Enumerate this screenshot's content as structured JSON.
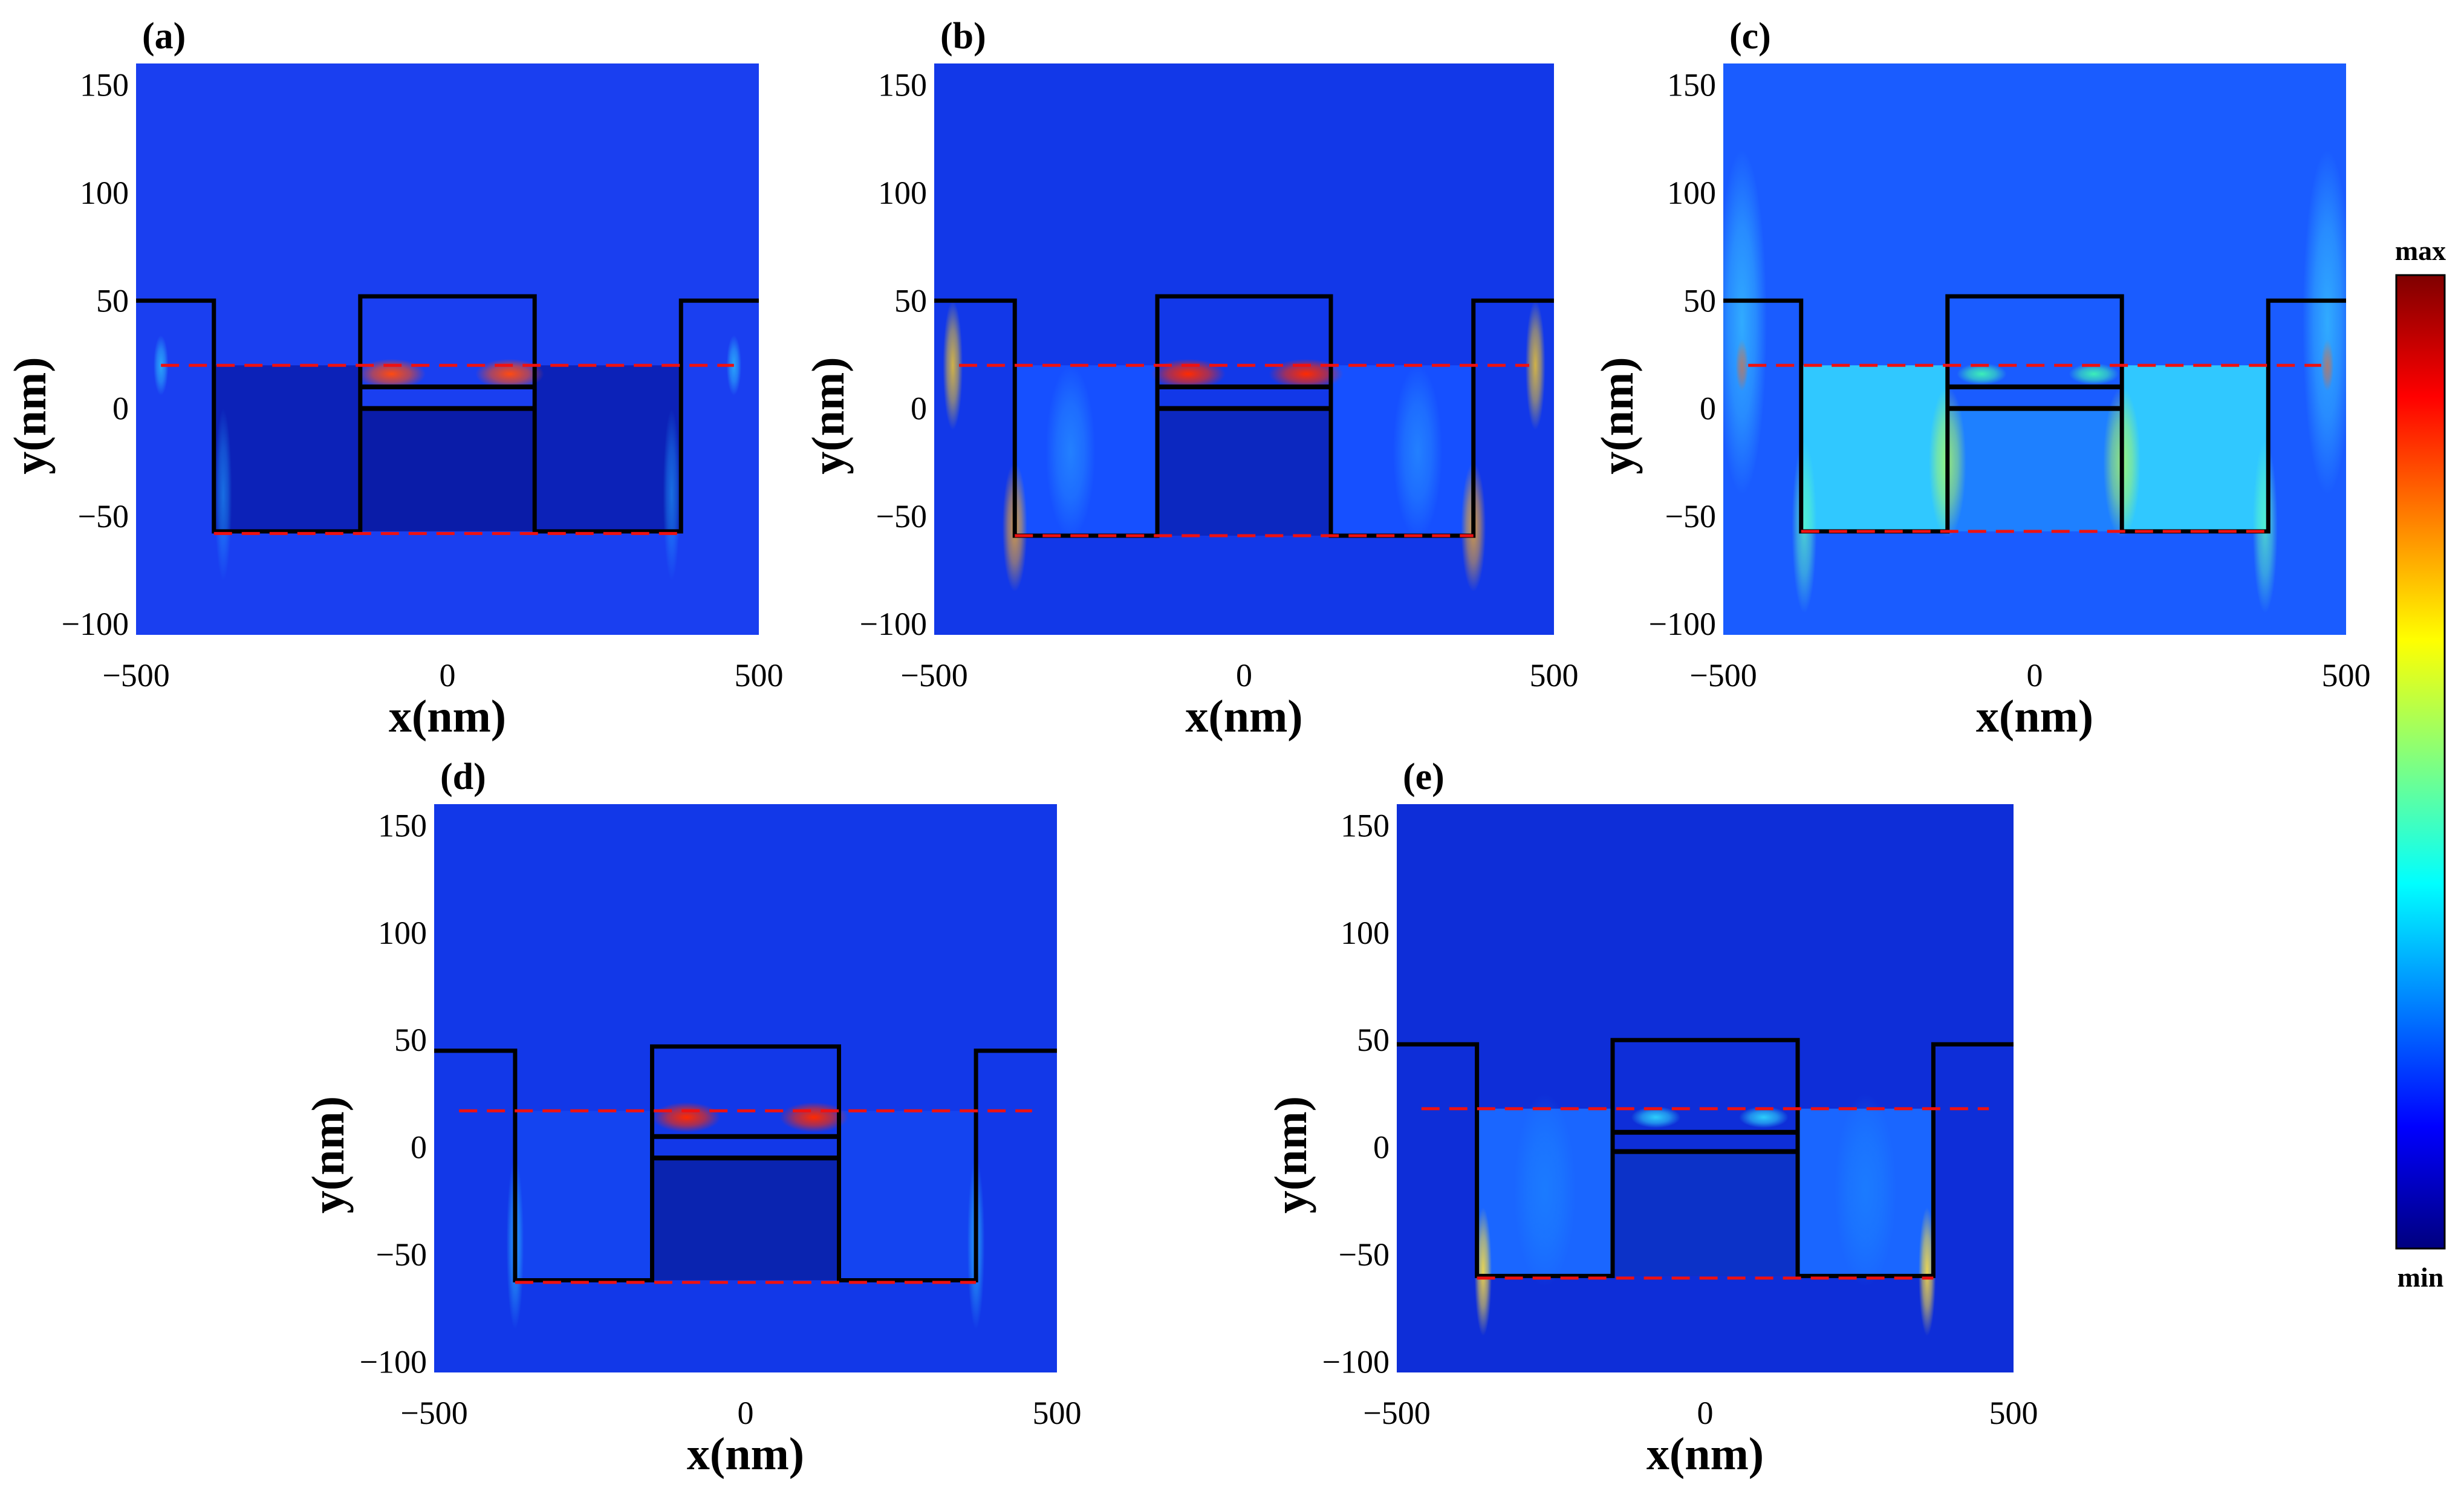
{
  "figure": {
    "colorbar": {
      "max_label": "max",
      "min_label": "min",
      "colors": [
        "#00007f",
        "#0000ff",
        "#0080ff",
        "#00ffff",
        "#80ff80",
        "#ffff00",
        "#ff8000",
        "#ff0000",
        "#7f0000"
      ]
    }
  },
  "chart_data": [
    {
      "type": "heatmap",
      "panel": "(a)",
      "xlabel": "x(nm)",
      "ylabel": "y(nm)",
      "xlim": [
        -500,
        500
      ],
      "ylim": [
        -105,
        160
      ],
      "xticks": [
        -500,
        0,
        500
      ],
      "yticks": [
        -100,
        -50,
        0,
        50,
        100,
        150
      ],
      "structure": {
        "outer_top": 50,
        "mesa_top": 52,
        "trench_bottom": -57,
        "pillar_half_width": 140,
        "trench_outer_x": 375
      },
      "layers_y": [
        10,
        0
      ],
      "ref_lines_y": [
        20,
        -58
      ],
      "background": "#1a3ff0",
      "trench_fill": "#0c22b8",
      "cavity_fill": "#0a1ca8",
      "hotspots": [
        {
          "x": -90,
          "y": 16,
          "rx": 55,
          "ry": 7,
          "color": "#ff4a10",
          "strength": 1.0
        },
        {
          "x": 100,
          "y": 16,
          "rx": 55,
          "ry": 7,
          "color": "#ff4a10",
          "strength": 1.0
        },
        {
          "x": -460,
          "y": 20,
          "rx": 12,
          "ry": 14,
          "color": "#30d0ff",
          "strength": 0.7
        },
        {
          "x": 460,
          "y": 20,
          "rx": 12,
          "ry": 14,
          "color": "#30d0ff",
          "strength": 0.7
        },
        {
          "x": -360,
          "y": -40,
          "rx": 14,
          "ry": 40,
          "color": "#20a0ff",
          "strength": 0.6
        },
        {
          "x": 360,
          "y": -40,
          "rx": 14,
          "ry": 40,
          "color": "#20a0ff",
          "strength": 0.6
        }
      ]
    },
    {
      "type": "heatmap",
      "panel": "(b)",
      "xlabel": "x(nm)",
      "ylabel": "y(nm)",
      "xlim": [
        -500,
        500
      ],
      "ylim": [
        -105,
        160
      ],
      "xticks": [
        -500,
        0,
        500
      ],
      "yticks": [
        -100,
        -50,
        0,
        50,
        100,
        150
      ],
      "structure": {
        "outer_top": 50,
        "mesa_top": 52,
        "trench_bottom": -59,
        "pillar_half_width": 140,
        "trench_outer_x": 370
      },
      "layers_y": [
        10,
        0
      ],
      "ref_lines_y": [
        20,
        -59
      ],
      "background": "#1238e8",
      "trench_fill": "#1650ff",
      "cavity_fill": "#0c28c0",
      "hotspots": [
        {
          "x": -90,
          "y": 16,
          "rx": 60,
          "ry": 7,
          "color": "#ff2a00",
          "strength": 1.0
        },
        {
          "x": 100,
          "y": 16,
          "rx": 60,
          "ry": 7,
          "color": "#ff2a00",
          "strength": 1.0
        },
        {
          "x": -470,
          "y": 20,
          "rx": 16,
          "ry": 30,
          "color": "#ffd020",
          "strength": 0.8
        },
        {
          "x": 470,
          "y": 20,
          "rx": 16,
          "ry": 30,
          "color": "#ffd020",
          "strength": 0.8
        },
        {
          "x": -370,
          "y": -55,
          "rx": 20,
          "ry": 30,
          "color": "#ffb020",
          "strength": 0.8
        },
        {
          "x": 370,
          "y": -55,
          "rx": 20,
          "ry": 30,
          "color": "#ffb020",
          "strength": 0.8
        },
        {
          "x": -280,
          "y": -20,
          "rx": 40,
          "ry": 40,
          "color": "#2fb0ff",
          "strength": 0.5
        },
        {
          "x": 280,
          "y": -20,
          "rx": 40,
          "ry": 40,
          "color": "#2fb0ff",
          "strength": 0.5
        }
      ]
    },
    {
      "type": "heatmap",
      "panel": "(c)",
      "xlabel": "x(nm)",
      "ylabel": "y(nm)",
      "xlim": [
        -500,
        500
      ],
      "ylim": [
        -105,
        160
      ],
      "xticks": [
        -500,
        0,
        500
      ],
      "yticks": [
        -100,
        -50,
        0,
        50,
        100,
        150
      ],
      "structure": {
        "outer_top": 50,
        "mesa_top": 52,
        "trench_bottom": -57,
        "pillar_half_width": 140,
        "trench_outer_x": 375
      },
      "layers_y": [
        10,
        0
      ],
      "ref_lines_y": [
        20,
        -57
      ],
      "background": "#1a5cff",
      "trench_fill": "#30c8ff",
      "cavity_fill": "#1e80ff",
      "hotspots": [
        {
          "x": -85,
          "y": 16,
          "rx": 40,
          "ry": 5,
          "color": "#40ffb0",
          "strength": 0.9
        },
        {
          "x": 95,
          "y": 16,
          "rx": 40,
          "ry": 5,
          "color": "#40ffb0",
          "strength": 0.9
        },
        {
          "x": -470,
          "y": 20,
          "rx": 10,
          "ry": 12,
          "color": "#ff2000",
          "strength": 1.0
        },
        {
          "x": 470,
          "y": 20,
          "rx": 10,
          "ry": 12,
          "color": "#ff2000",
          "strength": 1.0
        },
        {
          "x": -470,
          "y": 40,
          "rx": 40,
          "ry": 80,
          "color": "#40e0ff",
          "strength": 0.6
        },
        {
          "x": 470,
          "y": 40,
          "rx": 40,
          "ry": 80,
          "color": "#40e0ff",
          "strength": 0.6
        },
        {
          "x": -140,
          "y": -25,
          "rx": 30,
          "ry": 35,
          "color": "#b0ff60",
          "strength": 0.8
        },
        {
          "x": 140,
          "y": -25,
          "rx": 30,
          "ry": 35,
          "color": "#b0ff60",
          "strength": 0.8
        },
        {
          "x": -370,
          "y": -55,
          "rx": 20,
          "ry": 40,
          "color": "#60ffc0",
          "strength": 0.7
        },
        {
          "x": 370,
          "y": -55,
          "rx": 20,
          "ry": 40,
          "color": "#60ffc0",
          "strength": 0.7
        }
      ]
    },
    {
      "type": "heatmap",
      "panel": "(d)",
      "xlabel": "x(nm)",
      "ylabel": "y(nm)",
      "xlim": [
        -500,
        500
      ],
      "ylim": [
        -105,
        160
      ],
      "xticks": [
        -500,
        0,
        500
      ],
      "yticks": [
        -100,
        -50,
        0,
        50,
        100,
        150
      ],
      "structure": {
        "outer_top": 45,
        "mesa_top": 47,
        "trench_bottom": -62,
        "pillar_half_width": 150,
        "trench_outer_x": 370
      },
      "layers_y": [
        5,
        -5
      ],
      "ref_lines_y": [
        17,
        -63
      ],
      "background": "#1238e8",
      "trench_fill": "#1444f0",
      "cavity_fill": "#0a24b0",
      "hotspots": [
        {
          "x": -95,
          "y": 14,
          "rx": 55,
          "ry": 7,
          "color": "#ff2a00",
          "strength": 1.0
        },
        {
          "x": 110,
          "y": 14,
          "rx": 55,
          "ry": 7,
          "color": "#ff2a00",
          "strength": 1.0
        },
        {
          "x": -370,
          "y": -45,
          "rx": 14,
          "ry": 40,
          "color": "#30d0ff",
          "strength": 0.6
        },
        {
          "x": 370,
          "y": -45,
          "rx": 14,
          "ry": 40,
          "color": "#30d0ff",
          "strength": 0.6
        }
      ]
    },
    {
      "type": "heatmap",
      "panel": "(e)",
      "xlabel": "x(nm)",
      "ylabel": "y(nm)",
      "xlim": [
        -500,
        500
      ],
      "ylim": [
        -105,
        160
      ],
      "xticks": [
        -500,
        0,
        500
      ],
      "yticks": [
        -100,
        -50,
        0,
        50,
        100,
        150
      ],
      "structure": {
        "outer_top": 48,
        "mesa_top": 50,
        "trench_bottom": -60,
        "pillar_half_width": 150,
        "trench_outer_x": 370
      },
      "layers_y": [
        7,
        -2
      ],
      "ref_lines_y": [
        18,
        -61
      ],
      "background": "#0e2ed8",
      "trench_fill": "#1a66ff",
      "cavity_fill": "#0c32c8",
      "hotspots": [
        {
          "x": -80,
          "y": 14,
          "rx": 40,
          "ry": 5,
          "color": "#30e0ff",
          "strength": 0.9
        },
        {
          "x": 95,
          "y": 14,
          "rx": 40,
          "ry": 5,
          "color": "#30e0ff",
          "strength": 0.9
        },
        {
          "x": -360,
          "y": -58,
          "rx": 14,
          "ry": 30,
          "color": "#ffe040",
          "strength": 0.9
        },
        {
          "x": 360,
          "y": -58,
          "rx": 14,
          "ry": 30,
          "color": "#ffe040",
          "strength": 0.9
        },
        {
          "x": -260,
          "y": -20,
          "rx": 50,
          "ry": 45,
          "color": "#1c90ff",
          "strength": 0.5
        },
        {
          "x": 260,
          "y": -20,
          "rx": 50,
          "ry": 45,
          "color": "#1c90ff",
          "strength": 0.5
        }
      ]
    }
  ]
}
